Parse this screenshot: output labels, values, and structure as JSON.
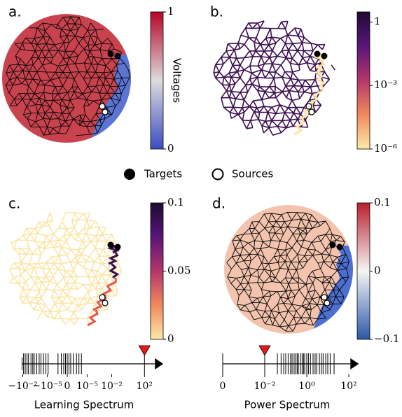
{
  "legend": {
    "targets": "Targets",
    "sources": "Sources"
  },
  "chart_data": [
    {
      "type": "network",
      "panel_label": "a.",
      "region_colors": [
        "#c8434e",
        "#5b75d3"
      ],
      "edge_color": "#000000",
      "colorbar": {
        "label": "Voltages",
        "colors": [
          "#3b4cc0",
          "#dddcdc",
          "#b40426"
        ],
        "lim": [
          0,
          1
        ],
        "ticks": [
          0,
          1
        ]
      }
    },
    {
      "type": "network",
      "panel_label": "b.",
      "edge_color": "#3c0f50",
      "path_colors": [
        "#fce5a7"
      ],
      "colorbar": {
        "scale": "log",
        "colors": [
          "#fdeaa9",
          "#f08a5a",
          "#b5366b",
          "#5a157a",
          "#1f0a33"
        ],
        "lim": [
          1e-06,
          3
        ],
        "ticks": [
          {
            "value": 1e-06,
            "label": "10⁻⁶"
          },
          {
            "value": 0.001,
            "label": "10⁻³"
          },
          1
        ]
      }
    },
    {
      "type": "network",
      "panel_label": "c.",
      "edge_color": "#fbe6a8",
      "path_colors": [
        "#3a0f4f",
        "#e4574a"
      ],
      "colorbar": {
        "colors": [
          "#fdeaa9",
          "#f08a5a",
          "#b5366b",
          "#5a157a",
          "#1f0a33"
        ],
        "lim": [
          0,
          0.1
        ],
        "ticks": [
          0,
          0.05,
          0.1
        ]
      }
    },
    {
      "type": "network",
      "panel_label": "d.",
      "region_colors": [
        "#f3c3ad",
        "#4d6fd0"
      ],
      "edge_color": "#000000",
      "colorbar": {
        "colors": [
          "#2b58a8",
          "#f5f5f5",
          "#b8202c"
        ],
        "lim": [
          -0.1,
          0.1
        ],
        "ticks": [
          {
            "value": -0.1,
            "label": "−0.1"
          },
          0,
          0.1
        ]
      }
    },
    {
      "type": "spectrum",
      "xlabel": "Learning Spectrum",
      "xscale": "symlog",
      "xlim": [
        -0.012,
        20000
      ],
      "highlighted": 24,
      "highlight_color": "#e8191c",
      "xticks": [
        {
          "value": -0.01,
          "label": "−10⁻²"
        },
        {
          "value": -1e-05,
          "label": "−10⁻⁵"
        },
        0,
        {
          "value": 1e-05,
          "label": "10⁻⁵"
        },
        {
          "value": 0.01,
          "label": "10⁻²"
        },
        {
          "value": 100,
          "label": "10²"
        }
      ],
      "values": [
        -0.008,
        -0.005,
        -0.003,
        -0.002,
        -0.001,
        -0.0006,
        -0.0004,
        -0.0002,
        -0.0001,
        -6e-05,
        -3e-05,
        -1.5e-05,
        -8e-06,
        -5e-07,
        -2e-07,
        -1e-07,
        -5e-08,
        0,
        5e-08,
        1e-07,
        2e-07,
        5e-07,
        1e-06,
        2e-06,
        100
      ]
    },
    {
      "type": "spectrum",
      "xlabel": "Power Spectrum",
      "xscale": "symlog",
      "xlim": [
        0,
        300
      ],
      "highlighted": 1,
      "highlight_color": "#e8191c",
      "xticks": [
        0,
        {
          "value": 0.01,
          "label": "10⁻²"
        },
        {
          "value": 1,
          "label": "10⁰"
        },
        {
          "value": 100,
          "label": "10²"
        }
      ],
      "values": [
        0,
        0.01,
        0.04,
        0.06,
        0.08,
        0.1,
        0.13,
        0.17,
        0.2,
        0.25,
        0.3,
        0.35,
        0.4,
        0.5,
        0.6,
        0.7,
        0.8,
        1,
        1.2,
        1.5,
        2,
        2.5,
        3,
        4,
        5,
        6,
        8,
        10,
        13,
        20
      ]
    }
  ]
}
